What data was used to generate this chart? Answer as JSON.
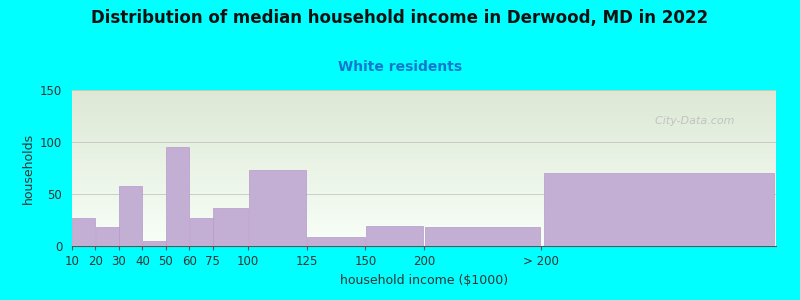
{
  "title": "Distribution of median household income in Derwood, MD in 2022",
  "subtitle": "White residents",
  "xlabel": "household income ($1000)",
  "ylabel": "households",
  "background_color": "#00FFFF",
  "bar_color": "#c4afd4",
  "bar_edge_color": "#b898cc",
  "categories": [
    "10",
    "20",
    "30",
    "40",
    "50",
    "60",
    "75",
    "100",
    "125",
    "150",
    "200",
    "> 200"
  ],
  "values": [
    27,
    18,
    58,
    5,
    95,
    27,
    37,
    73,
    9,
    19,
    18,
    70
  ],
  "left_edges": [
    0,
    10,
    20,
    30,
    40,
    50,
    60,
    75,
    100,
    125,
    150,
    200
  ],
  "widths": [
    10,
    10,
    10,
    10,
    10,
    10,
    15,
    25,
    25,
    25,
    50,
    100
  ],
  "ylim": [
    0,
    150
  ],
  "yticks": [
    0,
    50,
    100,
    150
  ],
  "watermark": "  City-Data.com",
  "title_fontsize": 12,
  "subtitle_fontsize": 10,
  "axis_label_fontsize": 9,
  "tick_fontsize": 8.5,
  "plot_bg_top": "#dde8d5",
  "plot_bg_bottom": "#f8fff8"
}
